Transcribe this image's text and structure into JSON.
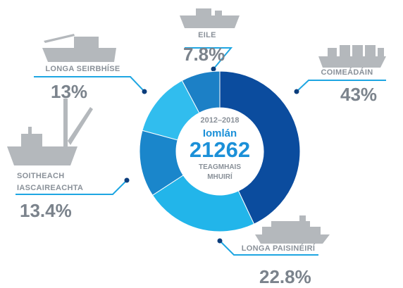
{
  "chart_data": {
    "type": "donut",
    "center_period": "2012–2018",
    "center_label": "Iomlán",
    "total": 21262,
    "center_caption": "TEAGMHAIS MHUIRÍ",
    "categories": [
      "COIMEÁDÁIN",
      "LONGA PAISINÉIRÍ",
      "SOITHEACH IASCAIREACHTA",
      "LONGA SEIRBHÍSE",
      "EILE"
    ],
    "values": [
      43,
      22.8,
      13.4,
      13,
      7.8
    ],
    "value_labels": [
      "43%",
      "22.8%",
      "13.4%",
      "13%",
      "7.8%"
    ],
    "colors": [
      "#0b4c9e",
      "#22b5ea",
      "#1a86cb",
      "#31bdee",
      "#1c80c6"
    ]
  }
}
